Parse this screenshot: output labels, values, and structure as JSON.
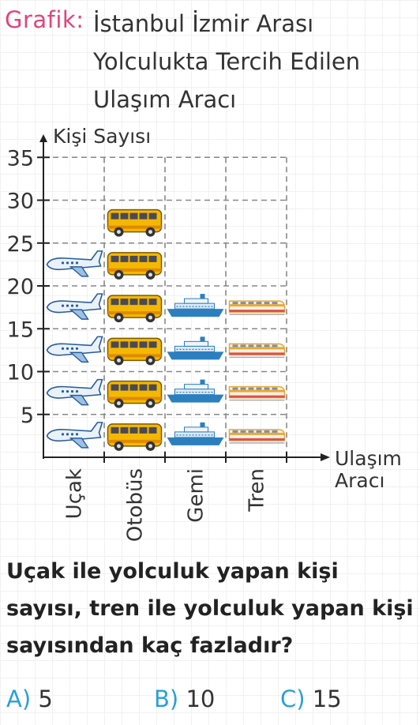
{
  "title": {
    "label": "Grafik:",
    "text": "İstanbul İzmir Arası Yolculukta Tercih Edilen Ulaşım Aracı"
  },
  "chart_data": {
    "type": "pictograph",
    "ylabel": "Kişi Sayısı",
    "xlabel": "Ulaşım Aracı",
    "yticks": [
      5,
      10,
      15,
      20,
      25,
      30,
      35
    ],
    "ylim": [
      0,
      35
    ],
    "categories": [
      "Uçak",
      "Otobüs",
      "Gemi",
      "Tren"
    ],
    "values": [
      25,
      30,
      20,
      20
    ],
    "icons": [
      "airplane-icon",
      "bus-icon",
      "ship-icon",
      "train-icon"
    ],
    "grid": "dashed"
  },
  "question": "Uçak ile yolculuk yapan kişi sayısı, tren ile yolculuk yapan kişi sayısından kaç fazladır?",
  "options": [
    {
      "letter": "A)",
      "value": "5"
    },
    {
      "letter": "B)",
      "value": "10"
    },
    {
      "letter": "C)",
      "value": "15"
    }
  ],
  "colors": {
    "accent_pink": "#e0457b",
    "accent_blue": "#2aa0d8",
    "bus": "#f5b800",
    "ship": "#2b7fbf",
    "train": "#e6a93a"
  }
}
